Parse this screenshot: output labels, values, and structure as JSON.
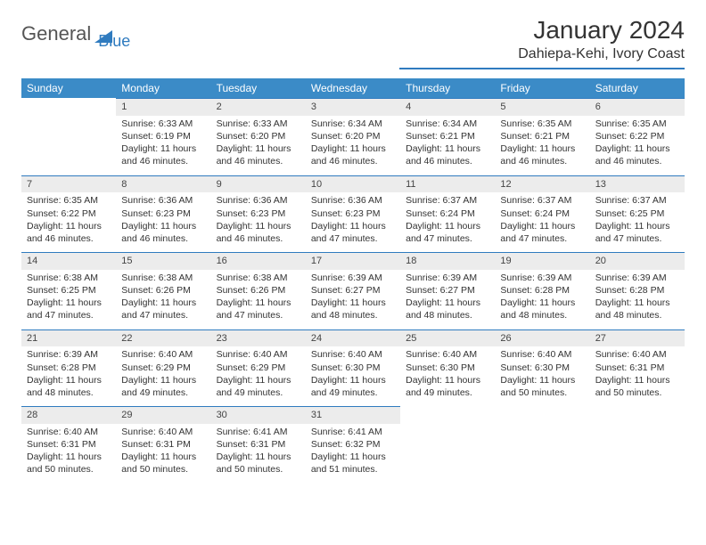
{
  "brand": {
    "word1": "General",
    "word2": "Blue"
  },
  "title": "January 2024",
  "subtitle": "Dahiepa-Kehi, Ivory Coast",
  "colors": {
    "header_bg": "#3b8bc7",
    "accent": "#2f7bbf",
    "daynum_bg": "#ececec",
    "text": "#333333",
    "page_bg": "#ffffff"
  },
  "dayNames": [
    "Sunday",
    "Monday",
    "Tuesday",
    "Wednesday",
    "Thursday",
    "Friday",
    "Saturday"
  ],
  "weeks": [
    [
      null,
      {
        "n": "1",
        "sr": "6:33 AM",
        "ss": "6:19 PM",
        "dl": "11 hours and 46 minutes."
      },
      {
        "n": "2",
        "sr": "6:33 AM",
        "ss": "6:20 PM",
        "dl": "11 hours and 46 minutes."
      },
      {
        "n": "3",
        "sr": "6:34 AM",
        "ss": "6:20 PM",
        "dl": "11 hours and 46 minutes."
      },
      {
        "n": "4",
        "sr": "6:34 AM",
        "ss": "6:21 PM",
        "dl": "11 hours and 46 minutes."
      },
      {
        "n": "5",
        "sr": "6:35 AM",
        "ss": "6:21 PM",
        "dl": "11 hours and 46 minutes."
      },
      {
        "n": "6",
        "sr": "6:35 AM",
        "ss": "6:22 PM",
        "dl": "11 hours and 46 minutes."
      }
    ],
    [
      {
        "n": "7",
        "sr": "6:35 AM",
        "ss": "6:22 PM",
        "dl": "11 hours and 46 minutes."
      },
      {
        "n": "8",
        "sr": "6:36 AM",
        "ss": "6:23 PM",
        "dl": "11 hours and 46 minutes."
      },
      {
        "n": "9",
        "sr": "6:36 AM",
        "ss": "6:23 PM",
        "dl": "11 hours and 46 minutes."
      },
      {
        "n": "10",
        "sr": "6:36 AM",
        "ss": "6:23 PM",
        "dl": "11 hours and 47 minutes."
      },
      {
        "n": "11",
        "sr": "6:37 AM",
        "ss": "6:24 PM",
        "dl": "11 hours and 47 minutes."
      },
      {
        "n": "12",
        "sr": "6:37 AM",
        "ss": "6:24 PM",
        "dl": "11 hours and 47 minutes."
      },
      {
        "n": "13",
        "sr": "6:37 AM",
        "ss": "6:25 PM",
        "dl": "11 hours and 47 minutes."
      }
    ],
    [
      {
        "n": "14",
        "sr": "6:38 AM",
        "ss": "6:25 PM",
        "dl": "11 hours and 47 minutes."
      },
      {
        "n": "15",
        "sr": "6:38 AM",
        "ss": "6:26 PM",
        "dl": "11 hours and 47 minutes."
      },
      {
        "n": "16",
        "sr": "6:38 AM",
        "ss": "6:26 PM",
        "dl": "11 hours and 47 minutes."
      },
      {
        "n": "17",
        "sr": "6:39 AM",
        "ss": "6:27 PM",
        "dl": "11 hours and 48 minutes."
      },
      {
        "n": "18",
        "sr": "6:39 AM",
        "ss": "6:27 PM",
        "dl": "11 hours and 48 minutes."
      },
      {
        "n": "19",
        "sr": "6:39 AM",
        "ss": "6:28 PM",
        "dl": "11 hours and 48 minutes."
      },
      {
        "n": "20",
        "sr": "6:39 AM",
        "ss": "6:28 PM",
        "dl": "11 hours and 48 minutes."
      }
    ],
    [
      {
        "n": "21",
        "sr": "6:39 AM",
        "ss": "6:28 PM",
        "dl": "11 hours and 48 minutes."
      },
      {
        "n": "22",
        "sr": "6:40 AM",
        "ss": "6:29 PM",
        "dl": "11 hours and 49 minutes."
      },
      {
        "n": "23",
        "sr": "6:40 AM",
        "ss": "6:29 PM",
        "dl": "11 hours and 49 minutes."
      },
      {
        "n": "24",
        "sr": "6:40 AM",
        "ss": "6:30 PM",
        "dl": "11 hours and 49 minutes."
      },
      {
        "n": "25",
        "sr": "6:40 AM",
        "ss": "6:30 PM",
        "dl": "11 hours and 49 minutes."
      },
      {
        "n": "26",
        "sr": "6:40 AM",
        "ss": "6:30 PM",
        "dl": "11 hours and 50 minutes."
      },
      {
        "n": "27",
        "sr": "6:40 AM",
        "ss": "6:31 PM",
        "dl": "11 hours and 50 minutes."
      }
    ],
    [
      {
        "n": "28",
        "sr": "6:40 AM",
        "ss": "6:31 PM",
        "dl": "11 hours and 50 minutes."
      },
      {
        "n": "29",
        "sr": "6:40 AM",
        "ss": "6:31 PM",
        "dl": "11 hours and 50 minutes."
      },
      {
        "n": "30",
        "sr": "6:41 AM",
        "ss": "6:31 PM",
        "dl": "11 hours and 50 minutes."
      },
      {
        "n": "31",
        "sr": "6:41 AM",
        "ss": "6:32 PM",
        "dl": "11 hours and 51 minutes."
      },
      null,
      null,
      null
    ]
  ],
  "labels": {
    "sunrise": "Sunrise:",
    "sunset": "Sunset:",
    "daylight": "Daylight:"
  }
}
